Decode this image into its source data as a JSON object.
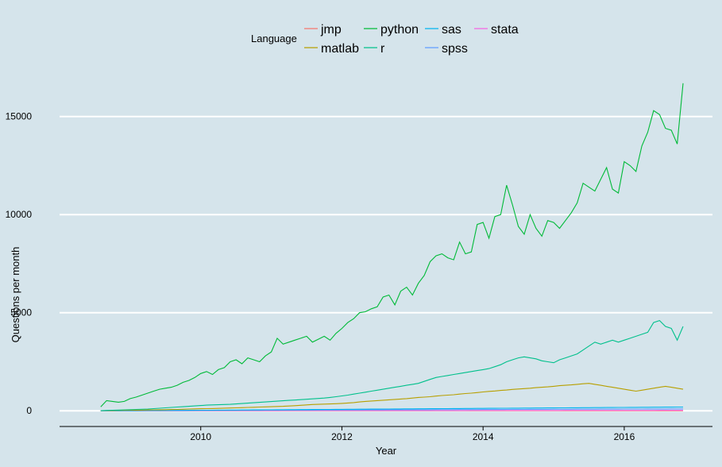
{
  "chart_data": {
    "type": "line",
    "xlabel": "Year",
    "ylabel": "Questions per month",
    "legend_title": "Language",
    "legend_position": "top",
    "grid": {
      "horizontal": true,
      "vertical": false
    },
    "background_color": "#d5e4eb",
    "grid_color": "#ffffff",
    "xlim": [
      "2008-01-01",
      "2017-04-01"
    ],
    "ylim": [
      -800,
      17500
    ],
    "x_ticks": [
      {
        "x": "2010-01-01",
        "label": "2010"
      },
      {
        "x": "2012-01-01",
        "label": "2012"
      },
      {
        "x": "2014-01-01",
        "label": "2014"
      },
      {
        "x": "2016-01-01",
        "label": "2016"
      }
    ],
    "y_ticks": [
      {
        "y": 0,
        "label": "0"
      },
      {
        "y": 5000,
        "label": "5000"
      },
      {
        "y": 10000,
        "label": "10000"
      },
      {
        "y": 15000,
        "label": "15000"
      }
    ],
    "series_dates": {
      "start": "2008-08",
      "end": "2016-11",
      "step": "month"
    },
    "series": [
      {
        "name": "jmp",
        "color": "#f8766d",
        "values": [
          0,
          0,
          0,
          0,
          0,
          0,
          0,
          0,
          0,
          0,
          0,
          0,
          0,
          0,
          0,
          0,
          0,
          0,
          0,
          1,
          1,
          1,
          1,
          1,
          1,
          1,
          1,
          1,
          1,
          1,
          1,
          1,
          1,
          1,
          1,
          1,
          1,
          1,
          1,
          1,
          2,
          2,
          2,
          2,
          2,
          2,
          2,
          2,
          2,
          2,
          2,
          2,
          2,
          2,
          2,
          2,
          2,
          2,
          2,
          2,
          2,
          2,
          2,
          2,
          2,
          2,
          2,
          2,
          2,
          2,
          3,
          3,
          3,
          3,
          3,
          3,
          3,
          3,
          3,
          3,
          3,
          3,
          3,
          3,
          3,
          3,
          3,
          3,
          3,
          3,
          3,
          3,
          3,
          3,
          3,
          3,
          3,
          3,
          3,
          3
        ]
      },
      {
        "name": "matlab",
        "color": "#b79f00",
        "values": [
          5,
          10,
          15,
          20,
          25,
          30,
          35,
          40,
          45,
          50,
          55,
          60,
          65,
          70,
          80,
          90,
          100,
          105,
          110,
          115,
          125,
          135,
          145,
          150,
          160,
          170,
          180,
          190,
          200,
          210,
          220,
          230,
          245,
          260,
          280,
          300,
          320,
          330,
          340,
          350,
          360,
          380,
          400,
          420,
          450,
          480,
          500,
          520,
          540,
          560,
          580,
          600,
          620,
          650,
          680,
          700,
          720,
          750,
          780,
          800,
          820,
          850,
          880,
          900,
          930,
          960,
          990,
          1010,
          1040,
          1060,
          1090,
          1110,
          1130,
          1150,
          1180,
          1200,
          1220,
          1250,
          1280,
          1300,
          1320,
          1350,
          1380,
          1400,
          1350,
          1300,
          1250,
          1200,
          1150,
          1100,
          1050,
          1000,
          1050,
          1100,
          1150,
          1200,
          1250,
          1200,
          1150,
          1100
        ]
      },
      {
        "name": "python",
        "color": "#00ba38",
        "values": [
          200,
          520,
          480,
          440,
          480,
          620,
          700,
          800,
          900,
          1000,
          1100,
          1150,
          1200,
          1300,
          1450,
          1550,
          1700,
          1900,
          2000,
          1850,
          2100,
          2200,
          2500,
          2600,
          2400,
          2700,
          2600,
          2500,
          2800,
          3000,
          3700,
          3400,
          3500,
          3600,
          3700,
          3800,
          3500,
          3650,
          3800,
          3600,
          3950,
          4200,
          4500,
          4700,
          5000,
          5050,
          5200,
          5300,
          5800,
          5900,
          5400,
          6100,
          6300,
          5900,
          6500,
          6900,
          7600,
          7900,
          8000,
          7800,
          7700,
          8600,
          8000,
          8100,
          9500,
          9600,
          8800,
          9900,
          10000,
          11500,
          10500,
          9400,
          9000,
          10000,
          9300,
          8900,
          9700,
          9600,
          9300,
          9700,
          10100,
          10600,
          11600,
          11400,
          11200,
          11800,
          12400,
          11300,
          11100,
          12700,
          12500,
          12200,
          13500,
          14200,
          15300,
          15100,
          14400,
          14300,
          13600,
          16700
        ]
      },
      {
        "name": "r",
        "color": "#00c08b",
        "values": [
          10,
          20,
          30,
          40,
          50,
          60,
          70,
          80,
          90,
          110,
          130,
          150,
          170,
          190,
          210,
          230,
          250,
          270,
          290,
          300,
          310,
          320,
          330,
          350,
          370,
          390,
          410,
          430,
          450,
          470,
          490,
          510,
          530,
          550,
          570,
          590,
          610,
          630,
          650,
          680,
          720,
          760,
          800,
          850,
          900,
          950,
          1000,
          1050,
          1100,
          1150,
          1200,
          1250,
          1300,
          1350,
          1400,
          1500,
          1600,
          1700,
          1750,
          1800,
          1850,
          1900,
          1950,
          2000,
          2050,
          2100,
          2150,
          2250,
          2350,
          2500,
          2600,
          2700,
          2750,
          2700,
          2650,
          2550,
          2500,
          2450,
          2600,
          2700,
          2800,
          2900,
          3100,
          3300,
          3500,
          3400,
          3500,
          3600,
          3500,
          3600,
          3700,
          3800,
          3900,
          4000,
          4500,
          4600,
          4300,
          4200,
          3600,
          4300
        ]
      },
      {
        "name": "sas",
        "color": "#00b4ef",
        "values": [
          0,
          1,
          2,
          3,
          4,
          5,
          6,
          8,
          10,
          12,
          14,
          16,
          18,
          20,
          22,
          24,
          26,
          28,
          30,
          32,
          34,
          36,
          38,
          40,
          42,
          44,
          46,
          48,
          50,
          52,
          54,
          56,
          58,
          60,
          62,
          64,
          66,
          68,
          70,
          72,
          74,
          76,
          78,
          80,
          82,
          84,
          86,
          88,
          90,
          92,
          94,
          96,
          98,
          100,
          102,
          104,
          106,
          108,
          110,
          112,
          114,
          116,
          118,
          120,
          122,
          124,
          126,
          128,
          130,
          132,
          134,
          136,
          138,
          140,
          142,
          144,
          146,
          148,
          150,
          152,
          154,
          156,
          158,
          160,
          162,
          164,
          166,
          168,
          170,
          172,
          174,
          176,
          178,
          180,
          182,
          184,
          186,
          188,
          190,
          192
        ]
      },
      {
        "name": "spss",
        "color": "#619cff",
        "values": [
          0,
          1,
          2,
          3,
          4,
          5,
          6,
          7,
          8,
          9,
          10,
          11,
          12,
          13,
          14,
          15,
          16,
          17,
          18,
          19,
          20,
          21,
          22,
          23,
          24,
          25,
          26,
          27,
          28,
          29,
          30,
          31,
          32,
          33,
          34,
          35,
          36,
          37,
          38,
          39,
          40,
          41,
          42,
          43,
          44,
          45,
          46,
          47,
          48,
          49,
          50,
          51,
          52,
          53,
          54,
          55,
          56,
          57,
          58,
          59,
          60,
          61,
          62,
          63,
          64,
          65,
          66,
          67,
          68,
          69,
          70,
          71,
          72,
          73,
          74,
          75,
          76,
          77,
          78,
          79,
          80,
          81,
          82,
          83,
          84,
          85,
          86,
          87,
          88,
          89,
          90,
          91,
          92,
          93,
          94,
          95,
          96,
          97,
          98,
          99
        ]
      },
      {
        "name": "stata",
        "color": "#f564e3",
        "values": [
          0,
          0,
          0,
          1,
          1,
          1,
          1,
          2,
          2,
          2,
          2,
          3,
          3,
          3,
          3,
          4,
          4,
          4,
          4,
          5,
          5,
          5,
          5,
          6,
          6,
          6,
          6,
          7,
          7,
          7,
          7,
          8,
          8,
          8,
          8,
          9,
          9,
          9,
          9,
          10,
          10,
          10,
          10,
          11,
          11,
          11,
          11,
          12,
          12,
          12,
          12,
          13,
          13,
          13,
          13,
          14,
          14,
          14,
          14,
          15,
          15,
          15,
          15,
          16,
          16,
          16,
          16,
          17,
          17,
          17,
          17,
          18,
          18,
          18,
          18,
          19,
          19,
          19,
          19,
          20,
          20,
          20,
          20,
          21,
          21,
          21,
          21,
          22,
          22,
          22,
          22,
          23,
          23,
          23,
          23,
          24,
          24,
          24,
          24,
          25
        ]
      }
    ]
  }
}
